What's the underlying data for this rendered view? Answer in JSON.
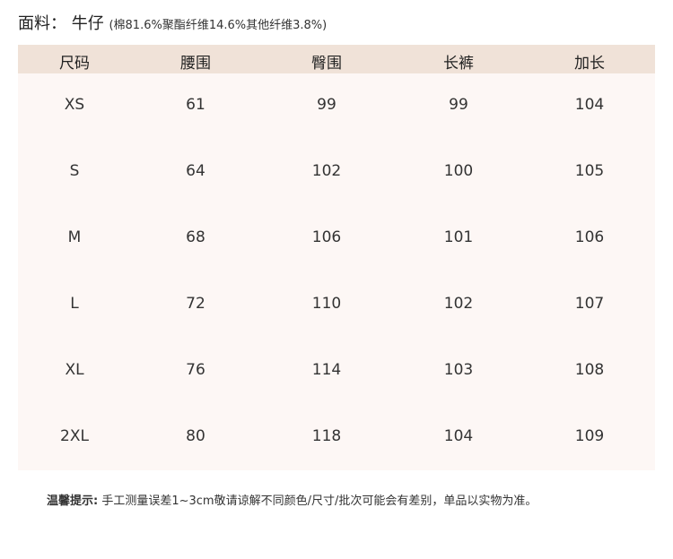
{
  "fabric": {
    "label": "面料：",
    "name": "牛仔",
    "composition": "(棉81.6%聚酯纤维14.6%其他纤维3.8%)"
  },
  "colors": {
    "header_bg": "#f0e2d8",
    "body_bg": "#fdf7f5"
  },
  "table": {
    "headers": [
      "尺码",
      "腰围",
      "臀围",
      "长裤",
      "加长"
    ],
    "rows": [
      [
        "XS",
        "61",
        "99",
        "99",
        "104"
      ],
      [
        "S",
        "64",
        "102",
        "100",
        "105"
      ],
      [
        "M",
        "68",
        "106",
        "101",
        "106"
      ],
      [
        "L",
        "72",
        "110",
        "102",
        "107"
      ],
      [
        "XL",
        "76",
        "114",
        "103",
        "108"
      ],
      [
        "2XL",
        "80",
        "118",
        "104",
        "109"
      ]
    ]
  },
  "note": {
    "label": "温馨提示:",
    "text": " 手工测量误差1~3cm敬请谅解不同颜色/尺寸/批次可能会有差别，单品以实物为准。"
  }
}
